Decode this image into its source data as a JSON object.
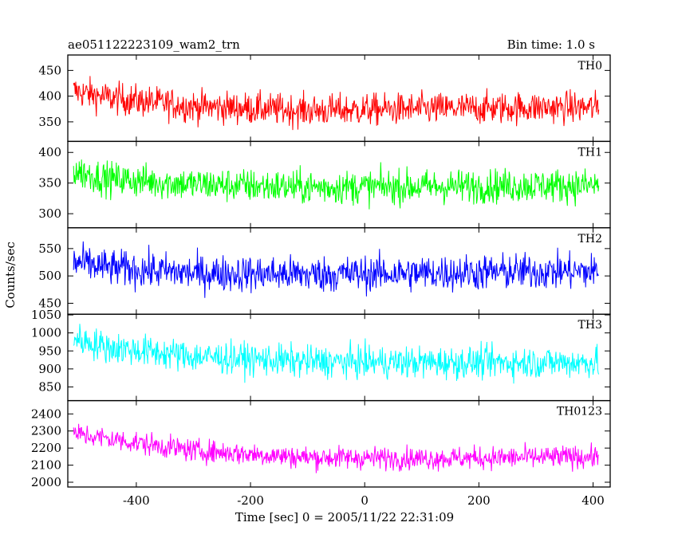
{
  "header": {
    "title": "ae051122223109_wam2_trn",
    "bin_time": "Bin time: 1.0 s"
  },
  "chart_data": {
    "type": "line",
    "xlabel": "Time [sec] 0 = 2005/11/22 22:31:09",
    "ylabel": "Counts/sec",
    "xlim": [
      -520,
      430
    ],
    "x_ticks": [
      -400,
      -200,
      0,
      200,
      400
    ],
    "x_start": -510,
    "x_end": 410,
    "panels": [
      {
        "name": "TH0",
        "color": "#ff0000",
        "ylim": [
          312,
          480
        ],
        "y_ticks": [
          350,
          400,
          450
        ],
        "trend": [
          [
            -510,
            410
          ],
          [
            -450,
            397
          ],
          [
            -300,
            380
          ],
          [
            -100,
            372
          ],
          [
            100,
            375
          ],
          [
            300,
            378
          ],
          [
            410,
            378
          ]
        ],
        "noise": 28
      },
      {
        "name": "TH1",
        "color": "#00ff00",
        "ylim": [
          277,
          418
        ],
        "y_ticks": [
          300,
          350,
          400
        ],
        "trend": [
          [
            -510,
            370
          ],
          [
            -450,
            357
          ],
          [
            -300,
            348
          ],
          [
            -100,
            343
          ],
          [
            100,
            344
          ],
          [
            300,
            346
          ],
          [
            410,
            346
          ]
        ],
        "noise": 25
      },
      {
        "name": "TH2",
        "color": "#0000ff",
        "ylim": [
          430,
          588
        ],
        "y_ticks": [
          450,
          500,
          550
        ],
        "trend": [
          [
            -510,
            525
          ],
          [
            -450,
            515
          ],
          [
            -300,
            505
          ],
          [
            -100,
            503
          ],
          [
            100,
            505
          ],
          [
            300,
            508
          ],
          [
            410,
            508
          ]
        ],
        "noise": 30
      },
      {
        "name": "TH3",
        "color": "#00ffff",
        "ylim": [
          812,
          1052
        ],
        "y_ticks": [
          850,
          900,
          950,
          1000,
          1050
        ],
        "trend": [
          [
            -510,
            985
          ],
          [
            -450,
            960
          ],
          [
            -300,
            935
          ],
          [
            -100,
            920
          ],
          [
            100,
            918
          ],
          [
            300,
            918
          ],
          [
            410,
            918
          ]
        ],
        "noise": 40
      },
      {
        "name": "TH0123",
        "color": "#ff00ff",
        "ylim": [
          1972,
          2478
        ],
        "y_ticks": [
          2000,
          2100,
          2200,
          2300,
          2400
        ],
        "trend": [
          [
            -510,
            2285
          ],
          [
            -450,
            2255
          ],
          [
            -300,
            2185
          ],
          [
            -100,
            2145
          ],
          [
            100,
            2140
          ],
          [
            300,
            2145
          ],
          [
            410,
            2150
          ]
        ],
        "noise": 60
      }
    ]
  }
}
